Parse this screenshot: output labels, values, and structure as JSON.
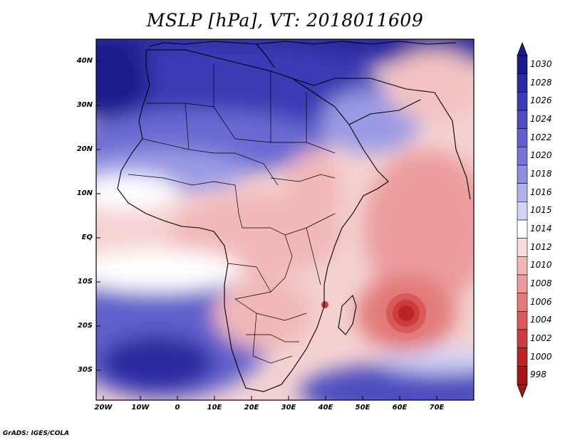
{
  "title": "MSLP [hPa], VT: 2018011609",
  "lat_labels": [
    "40N",
    "30N",
    "20N",
    "10N",
    "EQ",
    "10S",
    "20S",
    "30S"
  ],
  "lon_labels": [
    "20W",
    "10W",
    "0",
    "10E",
    "20E",
    "30E",
    "40E",
    "50E",
    "60E",
    "70E"
  ],
  "colorbar": {
    "levels": [
      "1030",
      "1028",
      "1026",
      "1024",
      "1022",
      "1020",
      "1018",
      "1016",
      "1015",
      "1014",
      "1012",
      "1010",
      "1008",
      "1006",
      "1004",
      "1002",
      "1000",
      "998"
    ],
    "colors": [
      "#1a1a8c",
      "#2a2aa0",
      "#3b3bb4",
      "#4d4dc0",
      "#6060cc",
      "#7575d6",
      "#8f8fe0",
      "#b0b0ec",
      "#d4d4f6",
      "#ffffff",
      "#f7dada",
      "#f2b8b8",
      "#ec9c9c",
      "#e27a7a",
      "#d85a5a",
      "#cc3c3c",
      "#bb2424",
      "#a01818"
    ]
  },
  "credit": "GrADS: IGES/COLA"
}
